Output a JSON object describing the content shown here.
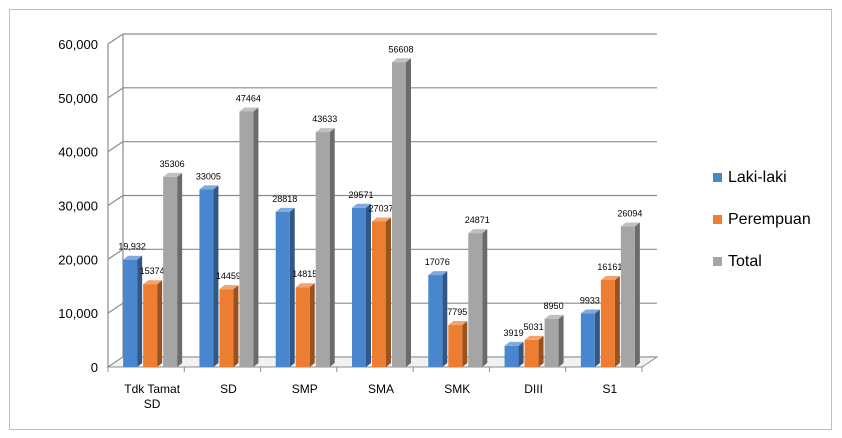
{
  "chart_data": {
    "type": "bar",
    "style": "3d-clustered-column",
    "categories": [
      "Tdk Tamat SD",
      "SD",
      "SMP",
      "SMA",
      "SMK",
      "DIII",
      "S1"
    ],
    "series": [
      {
        "name": "Laki-laki",
        "color": "#4a86cd",
        "values": [
          19932,
          33005,
          28818,
          29571,
          17076,
          3919,
          9933
        ],
        "labels": [
          "19,932",
          "33005",
          "28818",
          "29571",
          "17076",
          "3919",
          "9933"
        ]
      },
      {
        "name": "Perempuan",
        "color": "#ed7d31",
        "values": [
          15374,
          14459,
          14815,
          27037,
          7795,
          5031,
          16161
        ],
        "labels": [
          "15374",
          "14459",
          "14815",
          "27037",
          "7795",
          "5031",
          "16161"
        ]
      },
      {
        "name": "Total",
        "color": "#a5a5a5",
        "values": [
          35306,
          47464,
          43633,
          56608,
          24871,
          8950,
          26094
        ],
        "labels": [
          "35306",
          "47464",
          "43633",
          "56608",
          "24871",
          "8950",
          "26094"
        ]
      }
    ],
    "yticks": [
      "0",
      "10,000",
      "20,000",
      "30,000",
      "40,000",
      "50,000",
      "60,000"
    ],
    "ylim": [
      0,
      60000
    ],
    "grid": true,
    "legend": "right"
  }
}
